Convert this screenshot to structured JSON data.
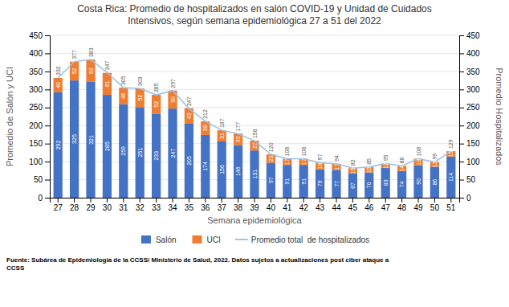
{
  "chart_data": {
    "type": "bar",
    "title": "Costa Rica: Promedio de hospitalizados en salón COVID-19 y Unidad de Cuidados",
    "subtitle": "Intensivos, según semana epidemiológica 27 a 51 del 2022",
    "xlabel": "Semana epidemiológica",
    "ylabel": "Promedio de Salón y UCI",
    "y2label": "Promedio Hospitalizados",
    "categories": [
      "27",
      "28",
      "29",
      "30",
      "31",
      "32",
      "33",
      "34",
      "35",
      "36",
      "37",
      "38",
      "39",
      "40",
      "41",
      "42",
      "43",
      "44",
      "45",
      "46",
      "47",
      "48",
      "49",
      "50",
      "51"
    ],
    "series": [
      {
        "name": "Salón",
        "type": "bar",
        "color": "#4472c4",
        "values": [
          292,
          325,
          321,
          285,
          259,
          251,
          233,
          247,
          205,
          174,
          156,
          146,
          131,
          97,
          91,
          91,
          79,
          77,
          67,
          70,
          83,
          74,
          90,
          86,
          114
        ]
      },
      {
        "name": "UCI",
        "type": "bar",
        "color": "#ed7d31",
        "values": [
          40,
          52,
          62,
          61,
          46,
          52,
          52,
          50,
          43,
          38,
          31,
          32,
          27,
          23,
          17,
          17,
          18,
          17,
          15,
          15,
          12,
          14,
          18,
          13,
          15
        ]
      },
      {
        "name": "Promedio total  de hospitalizados",
        "type": "line",
        "axis": "y2",
        "color": "#9dc3e6",
        "values": [
          332,
          377,
          383,
          347,
          305,
          303,
          285,
          297,
          247,
          212,
          187,
          177,
          158,
          120,
          108,
          108,
          97,
          94,
          82,
          85,
          95,
          88,
          108,
          99,
          129
        ]
      }
    ],
    "stacked": true,
    "data_labels": true,
    "ylim": [
      0,
      450
    ],
    "yticks": [
      0,
      50,
      100,
      150,
      200,
      250,
      300,
      350,
      400,
      450
    ],
    "y2lim": [
      0,
      450
    ],
    "y2ticks": [
      0,
      50,
      100,
      150,
      200,
      250,
      300,
      350,
      400,
      450
    ],
    "grid": true,
    "legend": "bottom",
    "annotations": [
      "Fuente: Subárea de Epidemiología de la CCSS/ Ministerio de Salud, 2022. Datos sujetos a actualizaciones post ciber ataque a\nCCSS"
    ]
  }
}
